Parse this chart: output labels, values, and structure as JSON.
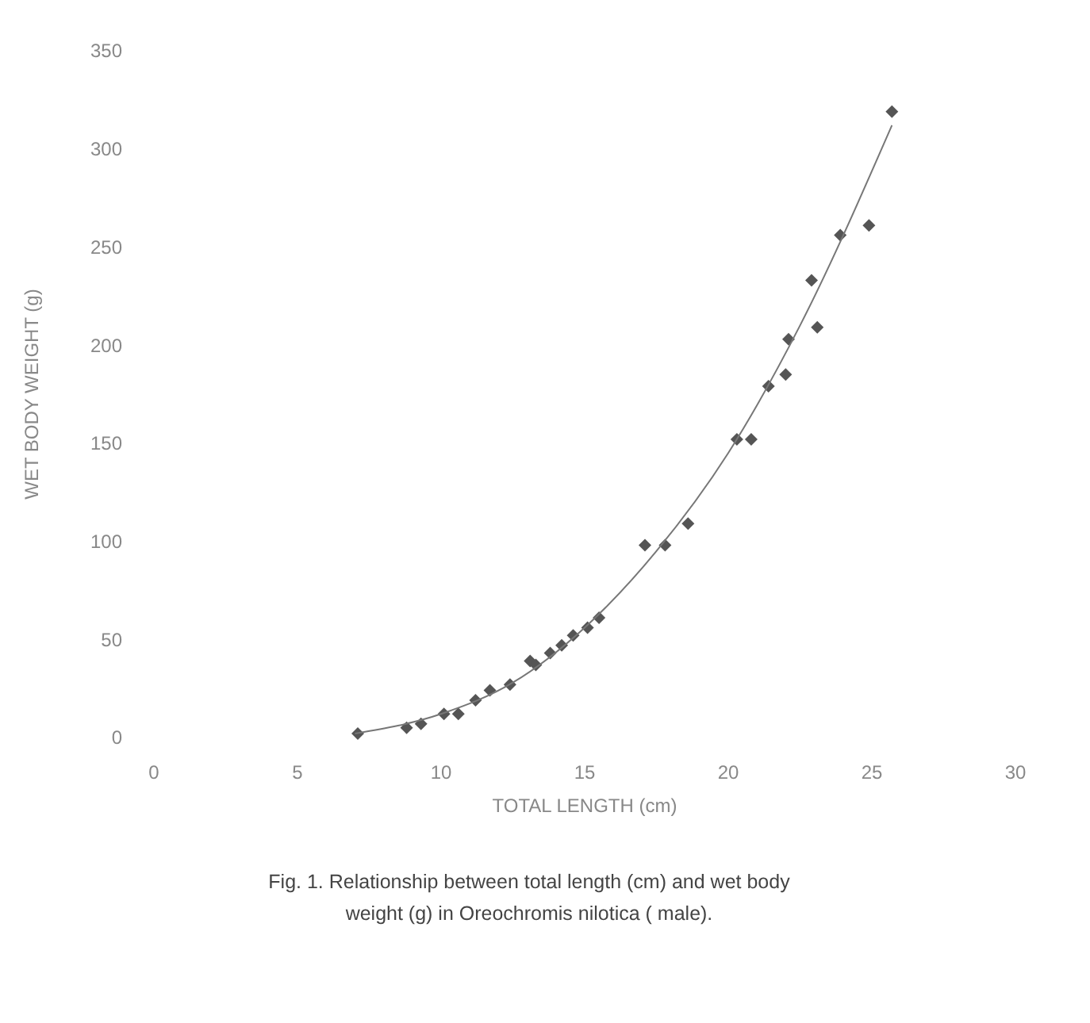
{
  "chart_data": {
    "type": "scatter",
    "xlabel": "TOTAL LENGTH (cm)",
    "ylabel": "WET BODY WEIGHT (g)",
    "xlim": [
      0,
      30
    ],
    "xticks": [
      0,
      5,
      10,
      15,
      20,
      25,
      30
    ],
    "ylim": [
      0,
      350
    ],
    "yticks": [
      0,
      50,
      100,
      150,
      200,
      250,
      300,
      350
    ],
    "grid": false,
    "marker": "diamond",
    "series": [
      {
        "color": "#555555",
        "x": [
          7.1,
          8.8,
          9.3,
          10.1,
          10.6,
          11.2,
          11.7,
          12.4,
          13.1,
          13.3,
          13.8,
          14.2,
          14.6,
          15.1,
          15.5,
          17.1,
          17.8,
          18.6,
          20.3,
          20.8,
          21.4,
          22.0,
          22.1,
          22.9,
          23.1,
          23.9,
          24.9,
          25.7
        ],
        "values": [
          2,
          5,
          7,
          12,
          12,
          19,
          24,
          27,
          39,
          37,
          43,
          47,
          52,
          56,
          61,
          98,
          98,
          109,
          152,
          152,
          179,
          185,
          203,
          233,
          209,
          256,
          261,
          319
        ]
      },
      {
        "type": "line",
        "color": "#777777",
        "marker": "none",
        "line_style": "solid",
        "x": [
          7,
          10,
          12.5,
          15,
          17.5,
          20,
          22.5,
          25.7
        ],
        "values": [
          2,
          12,
          28,
          56,
          95,
          145,
          210,
          312
        ]
      }
    ],
    "annotations": [
      "Fig. 1. Relationship between total length (cm) and wet body",
      "weight (g) in Oreochromis  nilotica ( male)."
    ]
  }
}
